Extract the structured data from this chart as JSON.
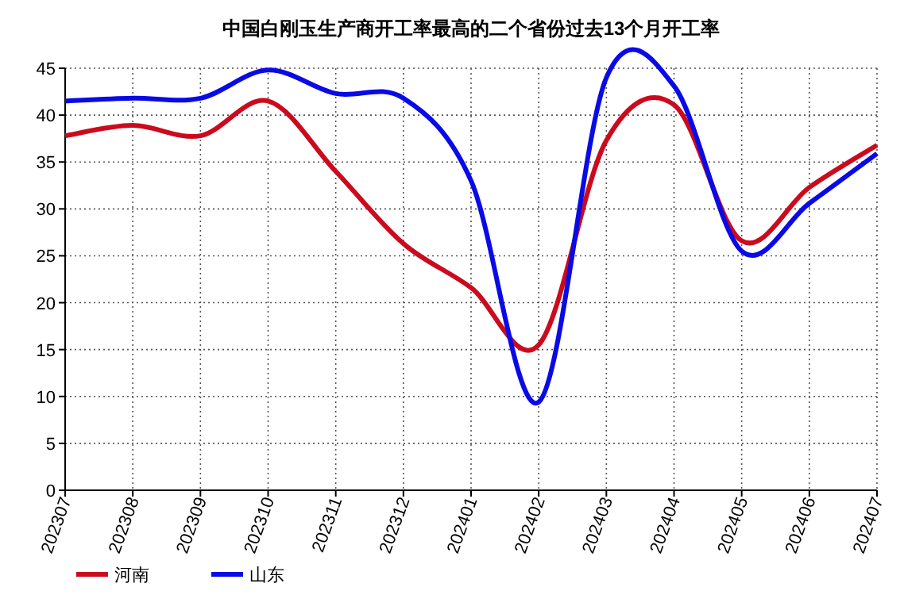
{
  "chart_data": {
    "type": "line",
    "title": "中国白刚玉生产商开工率最高的二个省份过去13个月开工率",
    "categories": [
      "202307",
      "202308",
      "202309",
      "202310",
      "202311",
      "202312",
      "202401",
      "202402",
      "202403",
      "202404",
      "202405",
      "202406",
      "202407"
    ],
    "series": [
      {
        "name": "河南",
        "color": "#cc0a1e",
        "values": [
          37.8,
          38.9,
          37.8,
          41.5,
          34.0,
          26.3,
          21.6,
          15.5,
          37.3,
          41.1,
          26.6,
          32.3,
          36.8
        ]
      },
      {
        "name": "山东",
        "color": "#0a0ae6",
        "values": [
          41.5,
          41.8,
          41.8,
          44.8,
          42.3,
          41.8,
          33.0,
          9.4,
          44.0,
          43.1,
          25.5,
          30.6,
          35.9
        ]
      }
    ],
    "ylim": [
      0,
      45
    ],
    "yticks": [
      0,
      5,
      10,
      15,
      20,
      25,
      30,
      35,
      40,
      45
    ],
    "grid": true,
    "legend": "bottom left",
    "marker": "none",
    "line_style": "solid"
  }
}
